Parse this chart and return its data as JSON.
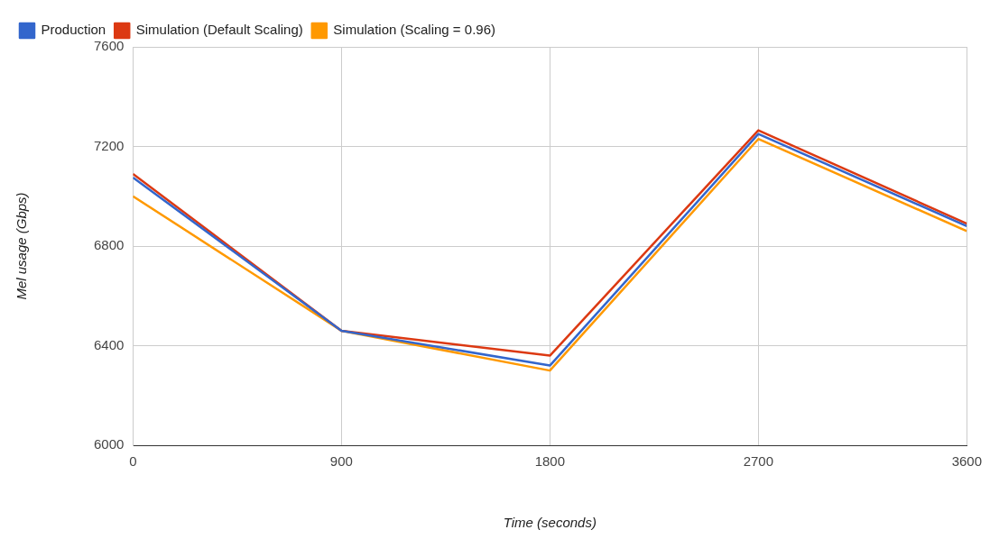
{
  "chart_data": {
    "type": "line",
    "xlabel": "Time (seconds)",
    "ylabel": "Mel usage (Gbps)",
    "x": [
      0,
      900,
      1800,
      2700,
      3600
    ],
    "series": [
      {
        "name": "Production",
        "color": "#3366cc",
        "values": [
          7075,
          6460,
          6320,
          7250,
          6880
        ]
      },
      {
        "name": "Simulation (Default Scaling)",
        "color": "#dc3912",
        "values": [
          7090,
          6460,
          6360,
          7265,
          6890
        ]
      },
      {
        "name": "Simulation (Scaling = 0.96)",
        "color": "#ff9900",
        "values": [
          7000,
          6460,
          6300,
          7230,
          6860
        ]
      }
    ],
    "xlim": [
      0,
      3600
    ],
    "xticks": [
      0,
      900,
      1800,
      2700,
      3600
    ],
    "ylim": [
      6000,
      7600
    ],
    "yticks": [
      6000,
      6400,
      6800,
      7200,
      7600
    ],
    "grid": true,
    "legend": "top left",
    "marker": "none",
    "line_style": "solid"
  }
}
